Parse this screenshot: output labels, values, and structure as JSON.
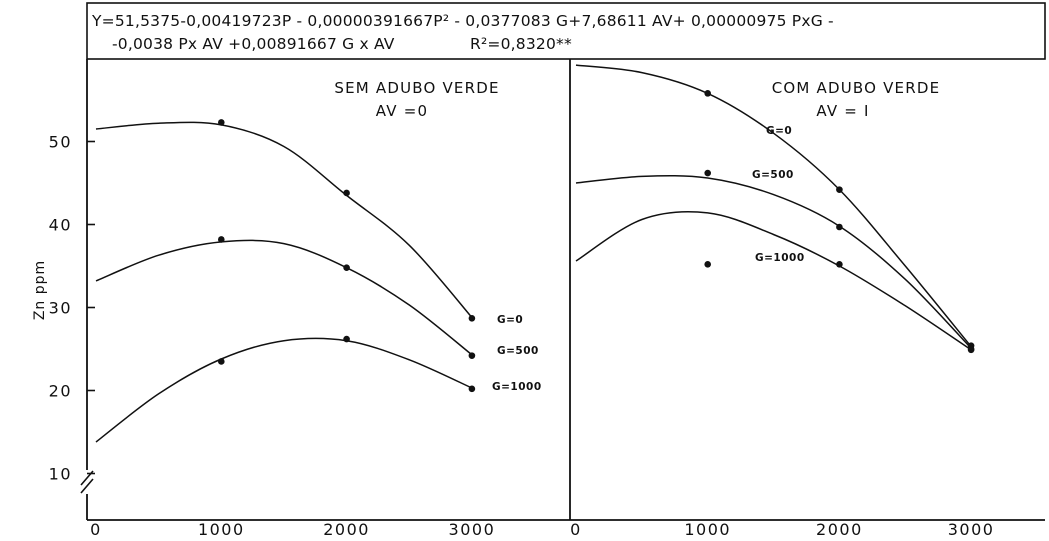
{
  "chart_data": {
    "type": "line",
    "equation_line1": "Y=51,5375-0,00419723P -  0,00000391667P² - 0,0377083 G+7,68611 AV+ 0,00000975 PxG -",
    "equation_line2": "-0,0038 Px AV +0,00891667 G x AV",
    "r_squared": "R²=0,8320**",
    "ylabel": "Zn    ppm",
    "ylim": [
      5,
      60
    ],
    "y_ticks": [
      10,
      20,
      30,
      40,
      50
    ],
    "xlim": [
      0,
      3500
    ],
    "x_ticks": [
      0,
      1000,
      2000,
      3000
    ],
    "panels": [
      {
        "title_line1": "SEM  ADUBO  VERDE",
        "title_line2": "AV =0",
        "series": [
          {
            "name": "G=0",
            "x": [
              1000,
              2000,
              3000
            ],
            "y": [
              52.3,
              43.8,
              28.7
            ],
            "curve": [
              [
                0,
                51.5
              ],
              [
                500,
                52.2
              ],
              [
                1000,
                52
              ],
              [
                1500,
                49.4
              ],
              [
                2000,
                43.5
              ],
              [
                2500,
                37.5
              ],
              [
                3000,
                28.8
              ]
            ]
          },
          {
            "name": "G=500",
            "x": [
              1000,
              2000,
              3000
            ],
            "y": [
              38.2,
              34.8,
              24.2
            ],
            "curve": [
              [
                0,
                33.2
              ],
              [
                500,
                36.3
              ],
              [
                1000,
                37.9
              ],
              [
                1500,
                37.7
              ],
              [
                2000,
                34.8
              ],
              [
                2500,
                30.3
              ],
              [
                3000,
                24.3
              ]
            ]
          },
          {
            "name": "G=1000",
            "x": [
              1000,
              2000,
              3000
            ],
            "y": [
              23.5,
              26.2,
              20.2
            ],
            "curve": [
              [
                0,
                13.8
              ],
              [
                500,
                19.6
              ],
              [
                1000,
                23.8
              ],
              [
                1500,
                26.0
              ],
              [
                2000,
                26.0
              ],
              [
                2500,
                23.7
              ],
              [
                3000,
                20.3
              ]
            ]
          }
        ]
      },
      {
        "title_line1": "COM  ADUBO  VERDE",
        "title_line2": "AV = I",
        "series": [
          {
            "name": "G=0",
            "x": [
              1000,
              2000,
              3000
            ],
            "y": [
              55.8,
              44.2,
              25.4
            ],
            "curve": [
              [
                0,
                59.2
              ],
              [
                500,
                58.3
              ],
              [
                1000,
                55.8
              ],
              [
                1500,
                51.0
              ],
              [
                2000,
                44.2
              ],
              [
                2500,
                35.0
              ],
              [
                3000,
                25.3
              ]
            ]
          },
          {
            "name": "G=500",
            "x": [
              1000,
              2000,
              3000
            ],
            "y": [
              46.2,
              39.7,
              25.0
            ],
            "curve": [
              [
                0,
                45.0
              ],
              [
                500,
                45.8
              ],
              [
                1000,
                45.6
              ],
              [
                1500,
                43.6
              ],
              [
                2000,
                39.8
              ],
              [
                2500,
                33.4
              ],
              [
                3000,
                25.1
              ]
            ]
          },
          {
            "name": "G=1000",
            "x": [
              1000,
              2000,
              3000
            ],
            "y": [
              35.2,
              35.2,
              24.9
            ],
            "curve": [
              [
                0,
                35.6
              ],
              [
                500,
                40.6
              ],
              [
                1000,
                41.4
              ],
              [
                1500,
                38.8
              ],
              [
                2000,
                35.0
              ],
              [
                2500,
                30.2
              ],
              [
                3000,
                24.9
              ]
            ]
          }
        ]
      }
    ]
  }
}
